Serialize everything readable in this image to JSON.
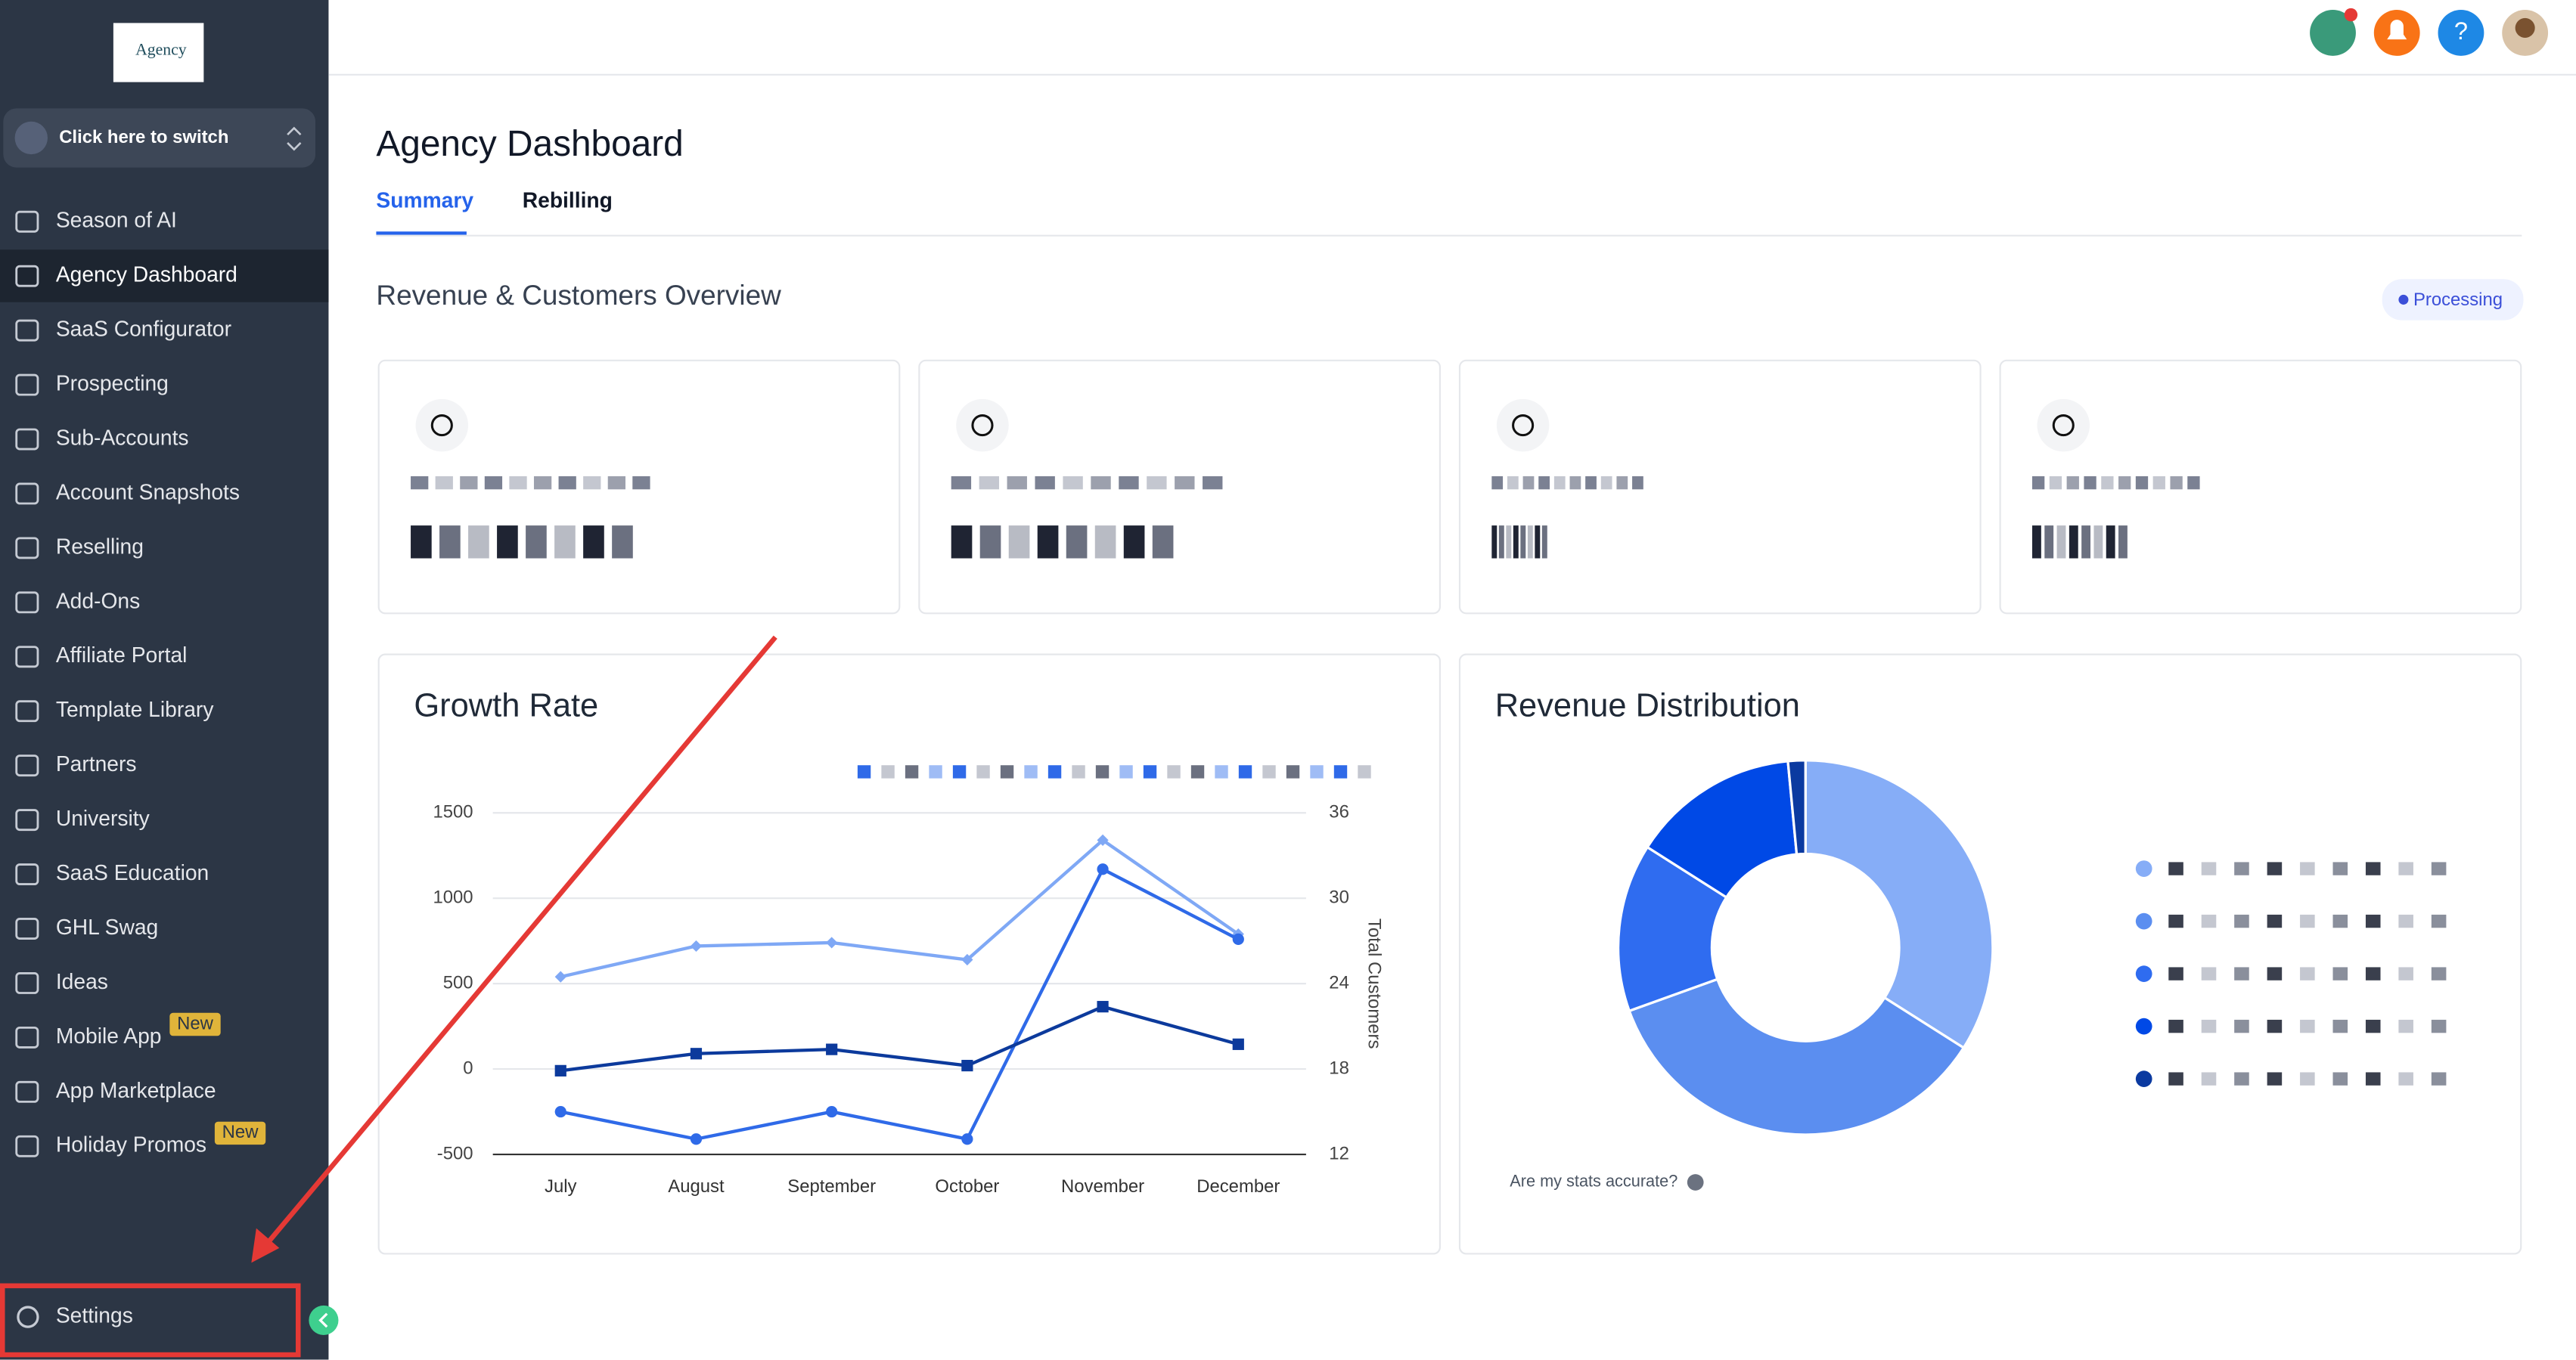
{
  "logo": "Agency",
  "sidebar": {
    "switcher": "Click here to switch",
    "items": [
      {
        "label": "Season of AI"
      },
      {
        "label": "Agency Dashboard"
      },
      {
        "label": "SaaS Configurator"
      },
      {
        "label": "Prospecting"
      },
      {
        "label": "Sub-Accounts"
      },
      {
        "label": "Account Snapshots"
      },
      {
        "label": "Reselling"
      },
      {
        "label": "Add-Ons"
      },
      {
        "label": "Affiliate Portal"
      },
      {
        "label": "Template Library"
      },
      {
        "label": "Partners"
      },
      {
        "label": "University"
      },
      {
        "label": "SaaS Education"
      },
      {
        "label": "GHL Swag"
      },
      {
        "label": "Ideas"
      },
      {
        "label": "Mobile App",
        "badge": "New"
      },
      {
        "label": "App Marketplace"
      },
      {
        "label": "Holiday Promos",
        "badge": "New"
      }
    ],
    "settings": "Settings"
  },
  "top_bar": {
    "help": "?"
  },
  "header": {
    "title": "Agency Dashboard",
    "tabs": [
      "Summary",
      "Rebilling"
    ]
  },
  "section": {
    "title": "Revenue & Customers Overview",
    "status": "Processing"
  },
  "chart_data": [
    {
      "type": "line",
      "title": "Growth Rate",
      "categories": [
        "July",
        "August",
        "September",
        "October",
        "November",
        "December"
      ],
      "ylim": [
        -500,
        1500
      ],
      "yticks": [
        -500,
        0,
        500,
        1000,
        1500
      ],
      "y2lim": [
        12,
        36
      ],
      "y2ticks": [
        12,
        18,
        24,
        30,
        36
      ],
      "y2_label": "Total Customers",
      "grid": true,
      "series": [
        {
          "color": "#7fa8f5",
          "marker": "diamond",
          "values": [
            540,
            720,
            740,
            640,
            1340,
            790
          ]
        },
        {
          "color": "#2f6ae8",
          "marker": "circle",
          "values": [
            -250,
            -410,
            -250,
            -410,
            1170,
            760
          ]
        },
        {
          "color": "#0c3a9c",
          "marker": "square",
          "values": [
            -10,
            90,
            115,
            20,
            365,
            145
          ]
        }
      ]
    },
    {
      "type": "pie",
      "title": "Revenue Distribution",
      "values": [
        34,
        35.5,
        14.5,
        14.5,
        1.5
      ],
      "colors": [
        "#86adf7",
        "#5b8ef0",
        "#2f6cf0",
        "#0049e6",
        "#0b3aa0"
      ],
      "note": "Are my stats accurate?"
    }
  ]
}
